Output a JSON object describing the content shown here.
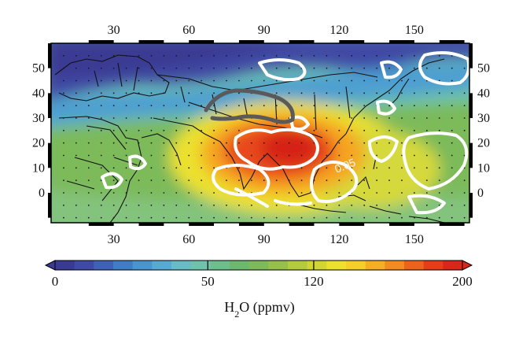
{
  "map": {
    "lon_range": [
      5,
      172
    ],
    "lat_range": [
      -12,
      60
    ],
    "x_ticks": [
      30,
      60,
      90,
      120,
      150
    ],
    "y_ticks": [
      0,
      10,
      20,
      30,
      40,
      50
    ],
    "contour_label": "0.05",
    "field": "H2O volume mixing ratio (ppmv)"
  },
  "colorbar": {
    "min": 0,
    "max": 200,
    "ticks": [
      {
        "value": 0,
        "label": "0"
      },
      {
        "value": 50,
        "label": "50"
      },
      {
        "value": 120,
        "label": "120"
      },
      {
        "value": 200,
        "label": "200"
      }
    ],
    "title_main": "H",
    "title_sub": "2",
    "title_rest": "O (ppmv)",
    "colors": [
      "#3b3a93",
      "#3e4aa6",
      "#3e62b8",
      "#3f7dc6",
      "#4895cf",
      "#57abd3",
      "#68bcc6",
      "#6fc3ad",
      "#6cbe8c",
      "#6cb86f",
      "#7eb95a",
      "#97c04b",
      "#b4cb3e",
      "#d2d635",
      "#ece12f",
      "#f6ce2a",
      "#f6ae25",
      "#f28b20",
      "#ec641c",
      "#e53d18",
      "#d9261a"
    ]
  },
  "colors": {
    "frame": "#000000",
    "contour_white": "#ffffff",
    "contour_grey": "#555555"
  }
}
